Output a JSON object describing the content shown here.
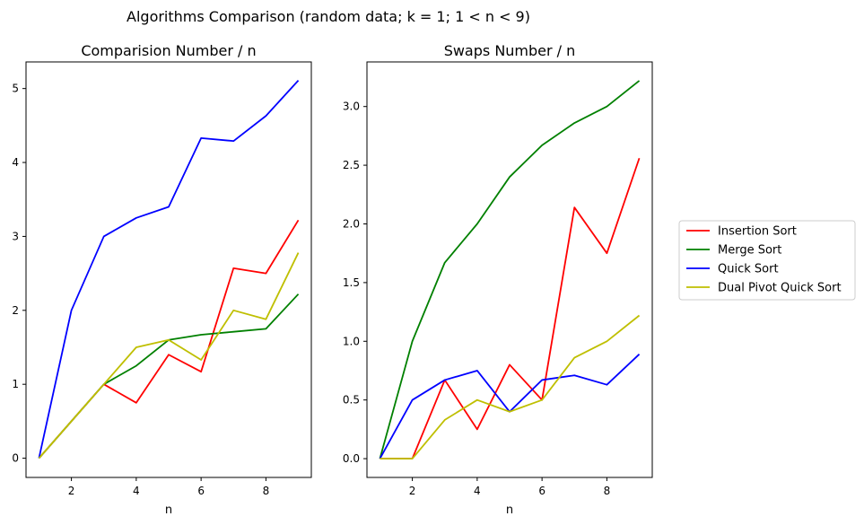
{
  "suptitle": "Algorithms Comparison (random data;  k = 1;  1 < n < 9)",
  "legend": {
    "placement": "center-right",
    "entries": [
      {
        "label": "Insertion Sort",
        "color": "#ff0000"
      },
      {
        "label": "Merge Sort",
        "color": "#008000"
      },
      {
        "label": "Quick Sort",
        "color": "#0000ff"
      },
      {
        "label": "Dual Pivot Quick Sort",
        "color": "#bfbf00"
      }
    ]
  },
  "chart_data": [
    {
      "type": "line",
      "title": "Comparision Number / n",
      "xlabel": "n",
      "ylabel": "",
      "grid": false,
      "x": [
        1,
        2,
        3,
        4,
        5,
        6,
        7,
        8,
        9
      ],
      "xticks": [
        2,
        4,
        6,
        8
      ],
      "yticks": [
        0,
        1,
        2,
        3,
        4,
        5
      ],
      "xlim": [
        0.6,
        9.4
      ],
      "ylim": [
        -0.26,
        5.36
      ],
      "series": [
        {
          "name": "Insertion Sort",
          "color": "#ff0000",
          "values": [
            0,
            0.5,
            1.0,
            0.75,
            1.4,
            1.17,
            2.57,
            2.5,
            3.22
          ]
        },
        {
          "name": "Merge Sort",
          "color": "#008000",
          "values": [
            0,
            0.5,
            1.0,
            1.25,
            1.6,
            1.67,
            1.71,
            1.75,
            2.22
          ]
        },
        {
          "name": "Quick Sort",
          "color": "#0000ff",
          "values": [
            0,
            2.0,
            3.0,
            3.25,
            3.4,
            4.33,
            4.29,
            4.63,
            5.11
          ]
        },
        {
          "name": "Dual Pivot Quick Sort",
          "color": "#bfbf00",
          "values": [
            0,
            0.5,
            1.0,
            1.5,
            1.6,
            1.33,
            2.0,
            1.88,
            2.78
          ]
        }
      ]
    },
    {
      "type": "line",
      "title": "Swaps Number / n",
      "xlabel": "n",
      "ylabel": "",
      "grid": false,
      "x": [
        1,
        2,
        3,
        4,
        5,
        6,
        7,
        8,
        9
      ],
      "xticks": [
        2,
        4,
        6,
        8
      ],
      "yticks": [
        0.0,
        0.5,
        1.0,
        1.5,
        2.0,
        2.5,
        3.0
      ],
      "ytick_labels": [
        "0.0",
        "0.5",
        "1.0",
        "1.5",
        "2.0",
        "2.5",
        "3.0"
      ],
      "xlim": [
        0.6,
        9.4
      ],
      "ylim": [
        -0.16,
        3.38
      ],
      "series": [
        {
          "name": "Insertion Sort",
          "color": "#ff0000",
          "values": [
            0,
            0,
            0.67,
            0.25,
            0.8,
            0.5,
            2.14,
            1.75,
            2.56
          ]
        },
        {
          "name": "Merge Sort",
          "color": "#008000",
          "values": [
            0,
            1.0,
            1.67,
            2.0,
            2.4,
            2.67,
            2.86,
            3.0,
            3.22
          ]
        },
        {
          "name": "Quick Sort",
          "color": "#0000ff",
          "values": [
            0,
            0.5,
            0.67,
            0.75,
            0.4,
            0.67,
            0.71,
            0.63,
            0.89
          ]
        },
        {
          "name": "Dual Pivot Quick Sort",
          "color": "#bfbf00",
          "values": [
            0,
            0,
            0.33,
            0.5,
            0.4,
            0.5,
            0.86,
            1.0,
            1.22
          ]
        }
      ]
    }
  ]
}
